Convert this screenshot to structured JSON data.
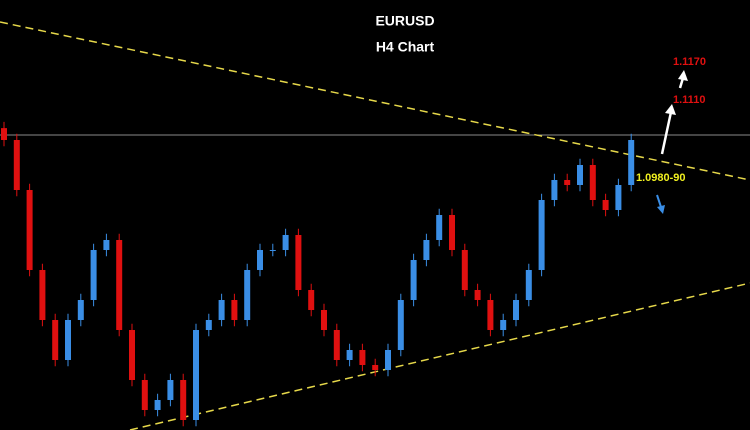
{
  "chart_data": {
    "type": "candlestick",
    "title": "EURUSD",
    "subtitle": "H4 Chart",
    "ylim": [
      1.0577,
      1.1265
    ],
    "open": [
      1.106,
      1.1041,
      1.0961,
      1.0833,
      1.0753,
      1.0689,
      1.0753,
      1.0785,
      1.0865,
      1.0881,
      1.0737,
      1.0657,
      1.0609,
      1.0625,
      1.0657,
      1.0593,
      1.0737,
      1.0753,
      1.0785,
      1.0753,
      1.0833,
      1.0865,
      1.0865,
      1.0889,
      1.0801,
      1.0769,
      1.0737,
      1.0689,
      1.0705,
      1.0681,
      1.0673,
      1.0705,
      1.0785,
      1.0849,
      1.0881,
      1.0921,
      1.0865,
      1.0801,
      1.0785,
      1.0737,
      1.0753,
      1.0785,
      1.0833,
      1.0945,
      1.0977,
      1.0969,
      1.1001,
      1.0945,
      1.0929,
      1.0969
    ],
    "high": [
      1.107,
      1.1051,
      1.0971,
      1.0843,
      1.0763,
      1.0763,
      1.0795,
      1.0875,
      1.0891,
      1.0891,
      1.0747,
      1.0667,
      1.0635,
      1.0667,
      1.0667,
      1.0747,
      1.0763,
      1.0795,
      1.0795,
      1.0843,
      1.0875,
      1.0875,
      1.0899,
      1.0899,
      1.0811,
      1.0779,
      1.0747,
      1.0715,
      1.0715,
      1.0691,
      1.0715,
      1.0795,
      1.0859,
      1.0891,
      1.0931,
      1.0931,
      1.0875,
      1.0811,
      1.0795,
      1.0763,
      1.0795,
      1.0843,
      1.0955,
      1.0987,
      1.0987,
      1.1011,
      1.1011,
      1.0955,
      1.0979,
      1.1051
    ],
    "low": [
      1.1031,
      1.0951,
      1.0823,
      1.0743,
      1.0679,
      1.0679,
      1.0743,
      1.0775,
      1.0855,
      1.0727,
      1.0647,
      1.0599,
      1.0599,
      1.0615,
      1.0583,
      1.0583,
      1.0727,
      1.0743,
      1.0743,
      1.0743,
      1.0823,
      1.0855,
      1.0855,
      1.0791,
      1.0759,
      1.0727,
      1.0679,
      1.0679,
      1.0671,
      1.0663,
      1.0663,
      1.0695,
      1.0775,
      1.0839,
      1.0871,
      1.0855,
      1.0791,
      1.0775,
      1.0727,
      1.0727,
      1.0743,
      1.0775,
      1.0823,
      1.0935,
      1.0959,
      1.0959,
      1.0935,
      1.0919,
      1.0919,
      1.0959
    ],
    "close": [
      1.1041,
      1.0961,
      1.0833,
      1.0753,
      1.0689,
      1.0753,
      1.0785,
      1.0865,
      1.0881,
      1.0737,
      1.0657,
      1.0609,
      1.0625,
      1.0657,
      1.0593,
      1.0737,
      1.0753,
      1.0785,
      1.0753,
      1.0833,
      1.0865,
      1.0865,
      1.0889,
      1.0801,
      1.0769,
      1.0737,
      1.0689,
      1.0705,
      1.0681,
      1.0673,
      1.0705,
      1.0785,
      1.0849,
      1.0881,
      1.0921,
      1.0865,
      1.0801,
      1.0785,
      1.0737,
      1.0753,
      1.0785,
      1.0833,
      1.0945,
      1.0977,
      1.0969,
      1.1001,
      1.0945,
      1.0929,
      1.0969,
      1.1041
    ],
    "up_color": "#3a8ee6",
    "down_color": "#e01010",
    "annotations": [
      "1.1170",
      "1.1110",
      "1.0980-90"
    ]
  }
}
